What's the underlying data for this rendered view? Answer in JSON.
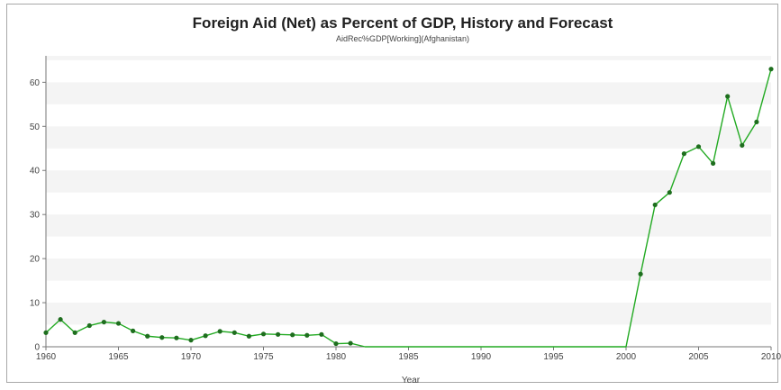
{
  "chart_data": {
    "type": "line",
    "title": "Foreign Aid (Net) as Percent of GDP, History and Forecast",
    "subtitle": "AidRec%GDP[Working](Afghanistan)",
    "xlabel": "Year",
    "ylabel": "",
    "xlim": [
      1960,
      2010
    ],
    "ylim": [
      0,
      66
    ],
    "x_ticks": [
      "1960",
      "1965",
      "1970",
      "1975",
      "1980",
      "1985",
      "1990",
      "1995",
      "2000",
      "2005",
      "2010"
    ],
    "y_ticks": [
      "0",
      "10",
      "20",
      "30",
      "40",
      "50",
      "60"
    ],
    "grid": "horizontal bands",
    "legend": "none",
    "colors": {
      "line": "#22aa22",
      "marker": "#1e6e1e",
      "band": "#f4f4f4",
      "axis": "#777777"
    },
    "series": [
      {
        "points": [
          [
            1960,
            3.2
          ],
          [
            1961,
            6.2
          ],
          [
            1962,
            3.2
          ],
          [
            1963,
            4.8
          ],
          [
            1964,
            5.6
          ],
          [
            1965,
            5.3
          ],
          [
            1966,
            3.6
          ],
          [
            1967,
            2.4
          ],
          [
            1968,
            2.1
          ],
          [
            1969,
            2.0
          ],
          [
            1970,
            1.5
          ],
          [
            1971,
            2.5
          ],
          [
            1972,
            3.5
          ],
          [
            1973,
            3.2
          ],
          [
            1974,
            2.4
          ],
          [
            1975,
            2.9
          ],
          [
            1976,
            2.8
          ],
          [
            1977,
            2.7
          ],
          [
            1978,
            2.6
          ],
          [
            1979,
            2.8
          ],
          [
            1980,
            0.7
          ],
          [
            1981,
            0.8
          ],
          [
            1982,
            0
          ],
          [
            1983,
            0
          ],
          [
            1984,
            0
          ],
          [
            1985,
            0
          ],
          [
            1986,
            0
          ],
          [
            1987,
            0
          ],
          [
            1988,
            0
          ],
          [
            1989,
            0
          ],
          [
            1990,
            0
          ],
          [
            1991,
            0
          ],
          [
            1992,
            0
          ],
          [
            1993,
            0
          ],
          [
            1994,
            0
          ],
          [
            1995,
            0
          ],
          [
            1996,
            0
          ],
          [
            1997,
            0
          ],
          [
            1998,
            0
          ],
          [
            1999,
            0
          ],
          [
            2000,
            0
          ],
          [
            2001,
            16.5
          ],
          [
            2002,
            32.2
          ],
          [
            2003,
            35.0
          ],
          [
            2004,
            43.8
          ],
          [
            2005,
            45.4
          ],
          [
            2006,
            41.6
          ],
          [
            2007,
            56.8
          ],
          [
            2008,
            45.7
          ],
          [
            2009,
            51.0
          ],
          [
            2010,
            63.0
          ]
        ],
        "marker_years": [
          1960,
          1961,
          1962,
          1963,
          1964,
          1965,
          1966,
          1967,
          1968,
          1969,
          1970,
          1971,
          1972,
          1973,
          1974,
          1975,
          1976,
          1977,
          1978,
          1979,
          1980,
          1981,
          2001,
          2002,
          2003,
          2004,
          2005,
          2006,
          2007,
          2008,
          2009,
          2010
        ]
      }
    ]
  }
}
